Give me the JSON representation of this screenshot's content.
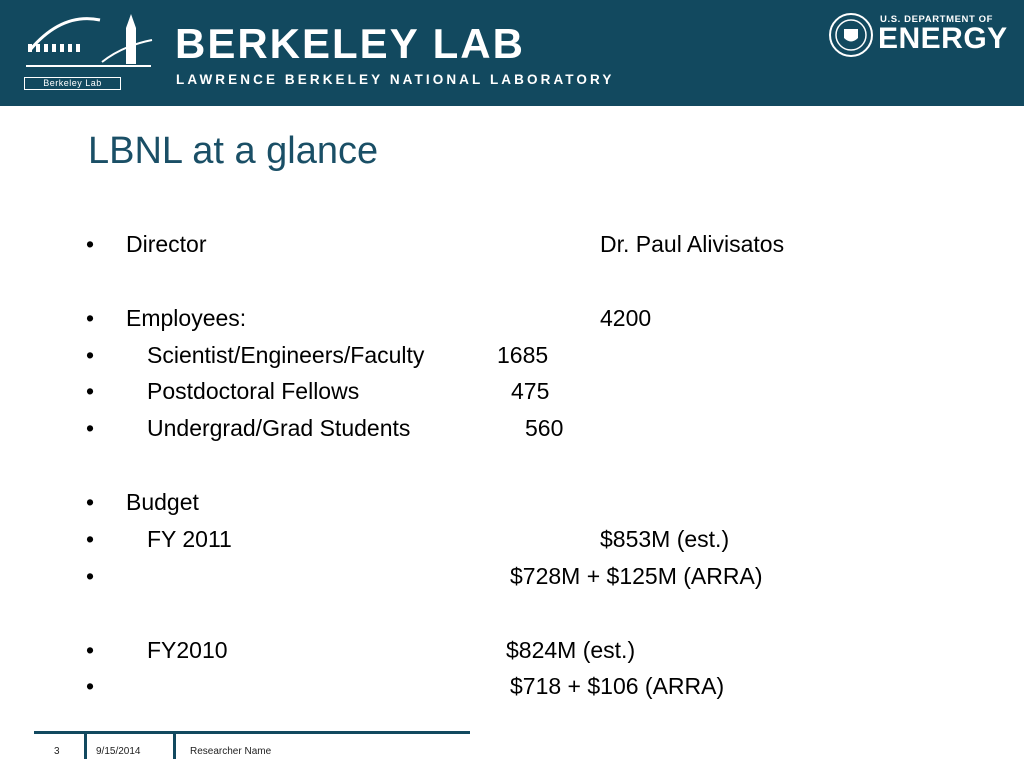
{
  "header": {
    "logo_tag": "Berkeley Lab",
    "lab_name": "BERKELEY LAB",
    "lab_subtitle": "LAWRENCE BERKELEY NATIONAL LABORATORY",
    "doe_top": "U.S. DEPARTMENT OF",
    "doe_main": "ENERGY",
    "colors": {
      "banner": "#12495f",
      "title": "#1a4f66"
    }
  },
  "slide": {
    "title": "LBNL at a glance",
    "bullet_char": "•",
    "rows": [
      {
        "label": "Director",
        "value": "Dr. Paul Alivisatos"
      },
      {
        "label": "Employees:",
        "value": "4200"
      },
      {
        "label": "Scientist/Engineers/Faculty",
        "value": "1685"
      },
      {
        "label": "Postdoctoral Fellows",
        "value": "475"
      },
      {
        "label": "Undergrad/Grad Students",
        "value": "560"
      },
      {
        "label": "Budget",
        "value": ""
      },
      {
        "label": "FY 2011",
        "value": "$853M (est.)"
      },
      {
        "label": "",
        "value": "$728M + $125M (ARRA)"
      },
      {
        "label": "FY2010",
        "value": "$824M (est.)"
      },
      {
        "label": "",
        "value": "$718 + $106 (ARRA)"
      }
    ]
  },
  "footer": {
    "page_number": "3",
    "date": "9/15/2014",
    "author": "Researcher Name"
  }
}
